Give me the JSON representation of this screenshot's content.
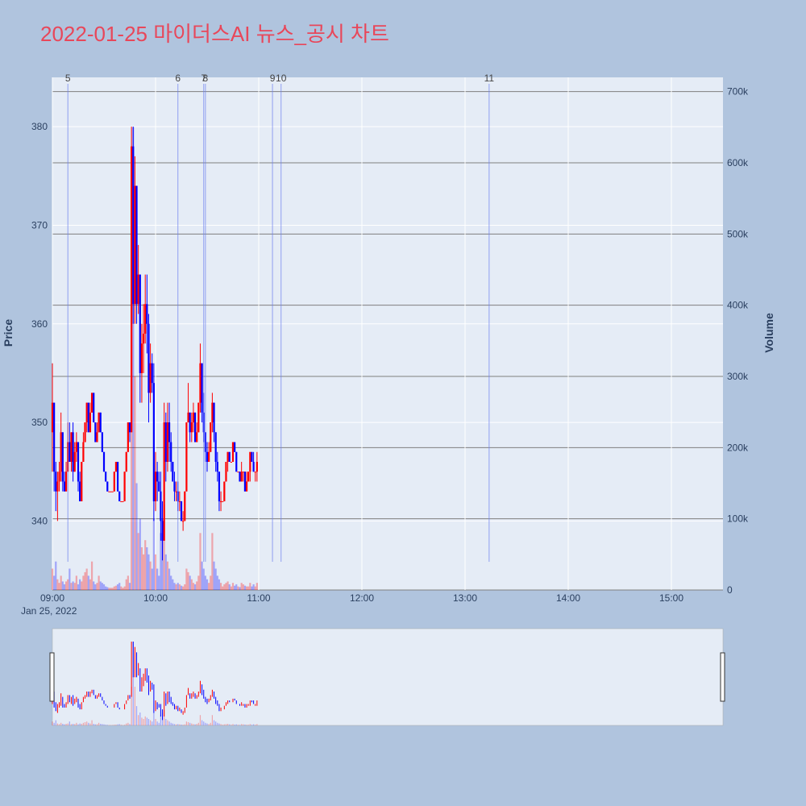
{
  "title": "2022-01-25 마이더스AI 뉴스_공시 차트",
  "chart_data": {
    "type": "candlestick",
    "title": "2022-01-25 마이더스AI 뉴스_공시 차트",
    "ylabel": "Price",
    "y2label": "Volume",
    "ylim": [
      333,
      385
    ],
    "y2lim": [
      0,
      720000
    ],
    "price_ticks": [
      "340",
      "350",
      "360",
      "370",
      "380"
    ],
    "volume_ticks": [
      "0",
      "100k",
      "200k",
      "300k",
      "400k",
      "500k",
      "600k",
      "700k"
    ],
    "x_ticks": [
      "09:00",
      "10:00",
      "11:00",
      "12:00",
      "13:00",
      "14:00",
      "15:00"
    ],
    "x_date": "Jan 25, 2022",
    "up_color": "#ff0000",
    "down_color": "#0000ff",
    "rangeslider": true,
    "annotations": [
      {
        "label": "5",
        "time": "09:09"
      },
      {
        "label": "6",
        "time": "10:13"
      },
      {
        "label": "7",
        "time": "10:28"
      },
      {
        "label": "8",
        "time": "10:29"
      },
      {
        "label": "9",
        "time": "11:08"
      },
      {
        "label": "10",
        "time": "11:13"
      },
      {
        "label": "11",
        "time": "13:14"
      }
    ],
    "candles": [
      [
        "09:00",
        349,
        356,
        345,
        352,
        30000
      ],
      [
        "09:01",
        352,
        352,
        343,
        345,
        20000
      ],
      [
        "09:02",
        345,
        346,
        341,
        343,
        40000
      ],
      [
        "09:03",
        343,
        345,
        340,
        344,
        15000
      ],
      [
        "09:04",
        344,
        346,
        343,
        345,
        10000
      ],
      [
        "09:05",
        345,
        351,
        344,
        349,
        20000
      ],
      [
        "09:06",
        349,
        349,
        343,
        344,
        12000
      ],
      [
        "09:07",
        344,
        345,
        343,
        343,
        8000
      ],
      [
        "09:08",
        343,
        346,
        343,
        345,
        12000
      ],
      [
        "09:09",
        345,
        350,
        345,
        348,
        15000
      ],
      [
        "09:10",
        348,
        350,
        346,
        346,
        30000
      ],
      [
        "09:11",
        346,
        349,
        345,
        349,
        10000
      ],
      [
        "09:12",
        349,
        350,
        344,
        345,
        12000
      ],
      [
        "09:13",
        345,
        348,
        345,
        347,
        10000
      ],
      [
        "09:14",
        347,
        349,
        346,
        348,
        20000
      ],
      [
        "09:15",
        348,
        348,
        343,
        344,
        8000
      ],
      [
        "09:16",
        344,
        345,
        342,
        342,
        15000
      ],
      [
        "09:17",
        342,
        346,
        342,
        346,
        12000
      ],
      [
        "09:18",
        346,
        349,
        346,
        348,
        20000
      ],
      [
        "09:19",
        348,
        350,
        348,
        350,
        25000
      ],
      [
        "09:20",
        350,
        352,
        349,
        352,
        30000
      ],
      [
        "09:21",
        352,
        352,
        349,
        349,
        20000
      ],
      [
        "09:22",
        349,
        352,
        349,
        351,
        15000
      ],
      [
        "09:23",
        351,
        353,
        351,
        353,
        40000
      ],
      [
        "09:24",
        353,
        353,
        350,
        350,
        12000
      ],
      [
        "09:25",
        350,
        350,
        348,
        348,
        8000
      ],
      [
        "09:26",
        348,
        350,
        348,
        349,
        10000
      ],
      [
        "09:27",
        349,
        351,
        349,
        351,
        20000
      ],
      [
        "09:28",
        351,
        351,
        349,
        349,
        12000
      ],
      [
        "09:29",
        349,
        349,
        347,
        347,
        10000
      ],
      [
        "09:30",
        347,
        347,
        345,
        345,
        8000
      ],
      [
        "09:31",
        345,
        345,
        344,
        344,
        5000
      ],
      [
        "09:32",
        344,
        344,
        343,
        343,
        4000
      ],
      [
        "09:33",
        343,
        343,
        343,
        343,
        3000
      ],
      [
        "09:34",
        343,
        343,
        343,
        343,
        3000
      ],
      [
        "09:35",
        343,
        343,
        343,
        343,
        3000
      ],
      [
        "09:36",
        343,
        345,
        343,
        345,
        5000
      ],
      [
        "09:37",
        345,
        346,
        345,
        346,
        6000
      ],
      [
        "09:38",
        346,
        346,
        343,
        343,
        8000
      ],
      [
        "09:39",
        343,
        343,
        342,
        342,
        10000
      ],
      [
        "09:40",
        342,
        342,
        342,
        342,
        5000
      ],
      [
        "09:41",
        342,
        342,
        342,
        342,
        3000
      ],
      [
        "09:42",
        342,
        345,
        342,
        345,
        5000
      ],
      [
        "09:43",
        345,
        347,
        345,
        347,
        15000
      ],
      [
        "09:44",
        347,
        350,
        347,
        350,
        20000
      ],
      [
        "09:45",
        350,
        350,
        348,
        349,
        10000
      ],
      [
        "09:46",
        349,
        380,
        349,
        378,
        300000
      ],
      [
        "09:47",
        378,
        380,
        360,
        362,
        650000
      ],
      [
        "09:48",
        362,
        377,
        360,
        374,
        300000
      ],
      [
        "09:49",
        374,
        374,
        360,
        362,
        150000
      ],
      [
        "09:50",
        362,
        368,
        361,
        365,
        80000
      ],
      [
        "09:51",
        365,
        365,
        352,
        355,
        100000
      ],
      [
        "09:52",
        355,
        360,
        352,
        358,
        60000
      ],
      [
        "09:53",
        358,
        362,
        355,
        359,
        50000
      ],
      [
        "09:54",
        359,
        365,
        358,
        362,
        70000
      ],
      [
        "09:55",
        362,
        365,
        357,
        360,
        60000
      ],
      [
        "09:56",
        360,
        361,
        350,
        353,
        50000
      ],
      [
        "09:57",
        353,
        358,
        352,
        356,
        40000
      ],
      [
        "09:58",
        356,
        357,
        353,
        354,
        30000
      ],
      [
        "09:59",
        354,
        356,
        340,
        342,
        100000
      ],
      [
        "10:00",
        342,
        347,
        341,
        345,
        50000
      ],
      [
        "10:01",
        345,
        346,
        342,
        344,
        30000
      ],
      [
        "10:02",
        344,
        345,
        343,
        343,
        20000
      ],
      [
        "10:03",
        343,
        345,
        338,
        340,
        80000
      ],
      [
        "10:04",
        340,
        342,
        336,
        338,
        100000
      ],
      [
        "10:05",
        338,
        352,
        338,
        350,
        120000
      ],
      [
        "10:06",
        350,
        351,
        344,
        346,
        50000
      ],
      [
        "10:07",
        346,
        352,
        345,
        350,
        40000
      ],
      [
        "10:08",
        350,
        352,
        346,
        348,
        30000
      ],
      [
        "10:09",
        348,
        349,
        345,
        346,
        20000
      ],
      [
        "10:10",
        346,
        346,
        344,
        344,
        15000
      ],
      [
        "10:11",
        344,
        345,
        342,
        343,
        10000
      ],
      [
        "10:12",
        343,
        344,
        342,
        343,
        8000
      ],
      [
        "10:13",
        343,
        344,
        341,
        342,
        10000
      ],
      [
        "10:14",
        342,
        343,
        341,
        342,
        8000
      ],
      [
        "10:15",
        342,
        342,
        340,
        340,
        6000
      ],
      [
        "10:16",
        340,
        341,
        339,
        340,
        5000
      ],
      [
        "10:17",
        340,
        343,
        340,
        343,
        8000
      ],
      [
        "10:18",
        343,
        350,
        343,
        350,
        30000
      ],
      [
        "10:19",
        350,
        354,
        350,
        351,
        25000
      ],
      [
        "10:20",
        351,
        351,
        348,
        349,
        20000
      ],
      [
        "10:21",
        349,
        351,
        348,
        350,
        15000
      ],
      [
        "10:22",
        350,
        352,
        349,
        351,
        10000
      ],
      [
        "10:23",
        351,
        351,
        348,
        348,
        8000
      ],
      [
        "10:24",
        348,
        350,
        348,
        349,
        12000
      ],
      [
        "10:25",
        349,
        352,
        349,
        352,
        20000
      ],
      [
        "10:26",
        352,
        358,
        351,
        356,
        80000
      ],
      [
        "10:27",
        356,
        356,
        350,
        351,
        40000
      ],
      [
        "10:28",
        351,
        353,
        348,
        349,
        30000
      ],
      [
        "10:29",
        349,
        349,
        346,
        347,
        20000
      ],
      [
        "10:30",
        347,
        348,
        345,
        346,
        15000
      ],
      [
        "10:31",
        346,
        348,
        346,
        347,
        10000
      ],
      [
        "10:32",
        347,
        350,
        347,
        350,
        20000
      ],
      [
        "10:33",
        350,
        353,
        349,
        352,
        80000
      ],
      [
        "10:34",
        352,
        352,
        348,
        349,
        40000
      ],
      [
        "10:35",
        349,
        349,
        345,
        346,
        30000
      ],
      [
        "10:36",
        346,
        347,
        344,
        345,
        20000
      ],
      [
        "10:37",
        345,
        345,
        341,
        342,
        15000
      ],
      [
        "10:38",
        342,
        343,
        341,
        342,
        10000
      ],
      [
        "10:39",
        342,
        342,
        342,
        342,
        5000
      ],
      [
        "10:40",
        342,
        344,
        342,
        344,
        8000
      ],
      [
        "10:41",
        344,
        346,
        344,
        346,
        10000
      ],
      [
        "10:42",
        346,
        347,
        345,
        347,
        12000
      ],
      [
        "10:43",
        347,
        347,
        346,
        346,
        8000
      ],
      [
        "10:44",
        346,
        346,
        346,
        346,
        5000
      ],
      [
        "10:45",
        346,
        348,
        346,
        348,
        10000
      ],
      [
        "10:46",
        348,
        348,
        347,
        347,
        6000
      ],
      [
        "10:47",
        347,
        347,
        345,
        345,
        8000
      ],
      [
        "10:48",
        345,
        345,
        345,
        345,
        5000
      ],
      [
        "10:49",
        345,
        345,
        344,
        344,
        4000
      ],
      [
        "10:50",
        344,
        346,
        344,
        345,
        10000
      ],
      [
        "10:51",
        345,
        345,
        344,
        345,
        8000
      ],
      [
        "10:52",
        345,
        345,
        343,
        343,
        6000
      ],
      [
        "10:53",
        343,
        345,
        343,
        344,
        5000
      ],
      [
        "10:54",
        344,
        345,
        344,
        345,
        5000
      ],
      [
        "10:55",
        345,
        347,
        344,
        347,
        10000
      ],
      [
        "10:56",
        347,
        347,
        346,
        346,
        5000
      ],
      [
        "10:57",
        346,
        347,
        345,
        345,
        8000
      ],
      [
        "10:58",
        345,
        345,
        344,
        345,
        5000
      ],
      [
        "10:59",
        345,
        347,
        344,
        346,
        10000
      ]
    ]
  }
}
